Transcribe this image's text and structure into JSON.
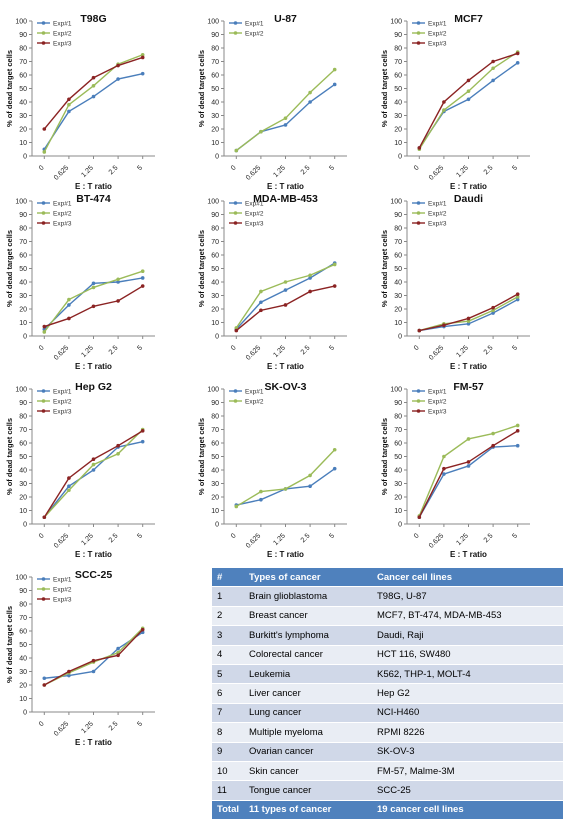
{
  "colors": {
    "exp1": "#4a7ebb",
    "exp2": "#9bbb59",
    "exp3": "#8b2323",
    "table_header": "#4f81bd"
  },
  "chart_data": [
    {
      "type": "line",
      "title": "T98G",
      "xlabel": "E : T ratio",
      "ylabel": "% of dead target cells",
      "categories": [
        "0",
        "0.625",
        "1.25",
        "2.5",
        "5"
      ],
      "ylim": [
        0,
        100
      ],
      "legend": "top-left",
      "series": [
        {
          "name": "Exp#1",
          "values": [
            5,
            33,
            44,
            57,
            61
          ]
        },
        {
          "name": "Exp#2",
          "values": [
            3,
            38,
            52,
            68,
            75
          ]
        },
        {
          "name": "Exp#3",
          "values": [
            20,
            42,
            58,
            67,
            73
          ]
        }
      ]
    },
    {
      "type": "line",
      "title": "U-87",
      "xlabel": "E : T ratio",
      "ylabel": "% of dead target cells",
      "categories": [
        "0",
        "0.625",
        "1.25",
        "2.5",
        "5"
      ],
      "ylim": [
        0,
        100
      ],
      "legend": "top-left",
      "series": [
        {
          "name": "Exp#1",
          "values": [
            4,
            18,
            23,
            40,
            53
          ]
        },
        {
          "name": "Exp#2",
          "values": [
            4,
            18,
            28,
            47,
            64
          ]
        }
      ]
    },
    {
      "type": "line",
      "title": "MCF7",
      "xlabel": "E : T ratio",
      "ylabel": "% of dead target cells",
      "categories": [
        "0",
        "0.625",
        "1.25",
        "2.5",
        "5"
      ],
      "ylim": [
        0,
        100
      ],
      "legend": "top-left",
      "series": [
        {
          "name": "Exp#1",
          "values": [
            6,
            33,
            42,
            56,
            69
          ]
        },
        {
          "name": "Exp#2",
          "values": [
            5,
            34,
            48,
            65,
            77
          ]
        },
        {
          "name": "Exp#3",
          "values": [
            6,
            40,
            56,
            70,
            76
          ]
        }
      ]
    },
    {
      "type": "line",
      "title": "BT-474",
      "xlabel": "E : T ratio",
      "ylabel": "% of dead target cells",
      "categories": [
        "0",
        "0.625",
        "1.25",
        "2.5",
        "5"
      ],
      "ylim": [
        0,
        100
      ],
      "legend": "top-left",
      "series": [
        {
          "name": "Exp#1",
          "values": [
            5,
            23,
            39,
            40,
            43
          ]
        },
        {
          "name": "Exp#2",
          "values": [
            3,
            27,
            36,
            42,
            48
          ]
        },
        {
          "name": "Exp#3",
          "values": [
            7,
            13,
            22,
            26,
            37
          ]
        }
      ]
    },
    {
      "type": "line",
      "title": "MDA-MB-453",
      "xlabel": "E : T ratio",
      "ylabel": "% of dead target cells",
      "categories": [
        "0",
        "0.625",
        "1.25",
        "2.5",
        "5"
      ],
      "ylim": [
        0,
        100
      ],
      "legend": "top-left",
      "series": [
        {
          "name": "Exp#1",
          "values": [
            5,
            25,
            34,
            43,
            54
          ]
        },
        {
          "name": "Exp#2",
          "values": [
            6,
            33,
            40,
            45,
            53
          ]
        },
        {
          "name": "Exp#3",
          "values": [
            4,
            19,
            23,
            33,
            37
          ]
        }
      ]
    },
    {
      "type": "line",
      "title": "Daudi",
      "xlabel": "E : T ratio",
      "ylabel": "% of dead target cells",
      "categories": [
        "0",
        "0.625",
        "1.25",
        "2.5",
        "5"
      ],
      "ylim": [
        0,
        100
      ],
      "legend": "top-left",
      "series": [
        {
          "name": "Exp#1",
          "values": [
            4,
            7,
            9,
            17,
            27
          ]
        },
        {
          "name": "Exp#2",
          "values": [
            4,
            9,
            11,
            19,
            29
          ]
        },
        {
          "name": "Exp#3",
          "values": [
            4,
            8,
            13,
            21,
            31
          ]
        }
      ]
    },
    {
      "type": "line",
      "title": "Hep G2",
      "xlabel": "E : T ratio",
      "ylabel": "% of dead target cells",
      "categories": [
        "0",
        "0.625",
        "1.25",
        "2.5",
        "5"
      ],
      "ylim": [
        0,
        100
      ],
      "legend": "top-left",
      "series": [
        {
          "name": "Exp#1",
          "values": [
            5,
            28,
            40,
            57,
            61
          ]
        },
        {
          "name": "Exp#2",
          "values": [
            5,
            25,
            44,
            52,
            70
          ]
        },
        {
          "name": "Exp#3",
          "values": [
            5,
            34,
            48,
            58,
            69
          ]
        }
      ]
    },
    {
      "type": "line",
      "title": "SK-OV-3",
      "xlabel": "E : T ratio",
      "ylabel": "% of dead target cells",
      "categories": [
        "0",
        "0.625",
        "1.25",
        "2.5",
        "5"
      ],
      "ylim": [
        0,
        100
      ],
      "legend": "top-left",
      "series": [
        {
          "name": "Exp#1",
          "values": [
            14,
            18,
            26,
            28,
            41
          ]
        },
        {
          "name": "Exp#2",
          "values": [
            13,
            24,
            26,
            36,
            55
          ]
        }
      ]
    },
    {
      "type": "line",
      "title": "FM-57",
      "xlabel": "E : T ratio",
      "ylabel": "% of dead target cells",
      "categories": [
        "0",
        "0.625",
        "1.25",
        "2.5",
        "5"
      ],
      "ylim": [
        0,
        100
      ],
      "legend": "top-left",
      "series": [
        {
          "name": "Exp#1",
          "values": [
            5,
            37,
            43,
            57,
            58
          ]
        },
        {
          "name": "Exp#2",
          "values": [
            6,
            50,
            63,
            67,
            73
          ]
        },
        {
          "name": "Exp#3",
          "values": [
            5,
            41,
            46,
            58,
            69
          ]
        }
      ]
    },
    {
      "type": "line",
      "title": "SCC-25",
      "xlabel": "E : T ratio",
      "ylabel": "% of dead target cells",
      "categories": [
        "0",
        "0.625",
        "1.25",
        "2.5",
        "5"
      ],
      "ylim": [
        0,
        100
      ],
      "legend": "top-left",
      "series": [
        {
          "name": "Exp#1",
          "values": [
            25,
            27,
            30,
            47,
            59
          ]
        },
        {
          "name": "Exp#2",
          "values": [
            20,
            29,
            37,
            44,
            62
          ]
        },
        {
          "name": "Exp#3",
          "values": [
            20,
            30,
            38,
            42,
            61
          ]
        }
      ]
    }
  ],
  "table": {
    "headers": [
      "#",
      "Types of cancer",
      "Cancer cell lines"
    ],
    "rows": [
      [
        "1",
        "Brain glioblastoma",
        "T98G, U-87"
      ],
      [
        "2",
        "Breast cancer",
        "MCF7, BT-474, MDA-MB-453"
      ],
      [
        "3",
        "Burkitt's lymphoma",
        "Daudi, Raji"
      ],
      [
        "4",
        "Colorectal cancer",
        "HCT 116, SW480"
      ],
      [
        "5",
        "Leukemia",
        "K562, THP-1, MOLT-4"
      ],
      [
        "6",
        "Liver cancer",
        "Hep G2"
      ],
      [
        "7",
        "Lung cancer",
        "NCI-H460"
      ],
      [
        "8",
        "Multiple myeloma",
        "RPMI 8226"
      ],
      [
        "9",
        "Ovarian cancer",
        "SK-OV-3"
      ],
      [
        "10",
        "Skin cancer",
        "FM-57, Malme-3M"
      ],
      [
        "11",
        "Tongue cancer",
        "SCC-25"
      ]
    ],
    "total": [
      "Total",
      "11 types of cancer",
      "19 cancer cell lines"
    ]
  }
}
